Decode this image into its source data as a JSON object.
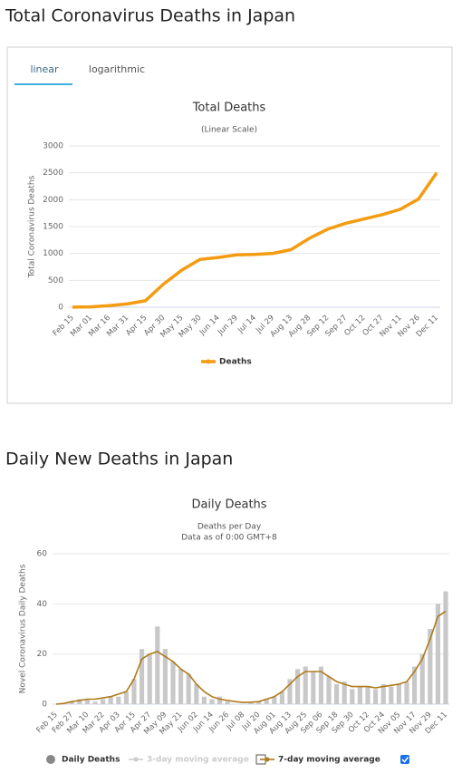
{
  "page": {
    "heading": "Total Coronavirus Deaths in Japan",
    "tabs": [
      "linear",
      "logarithmic"
    ],
    "heading2": "Daily New Deaths in Japan"
  },
  "chart_data": [
    {
      "type": "line",
      "title": "Total Deaths",
      "subtitle": [
        "(Linear Scale)"
      ],
      "y_label": "Total Coronavirus Deaths",
      "categories": [
        "Feb 15",
        "Mar 01",
        "Mar 16",
        "Mar 31",
        "Apr 15",
        "Apr 30",
        "May 15",
        "May 30",
        "Jun 14",
        "Jun 29",
        "Jul 14",
        "Jul 29",
        "Aug 13",
        "Aug 28",
        "Sep 12",
        "Sep 27",
        "Oct 12",
        "Oct 27",
        "Nov 11",
        "Nov 26",
        "Dec 11"
      ],
      "series": [
        {
          "name": "Deaths",
          "color": "#f39c12",
          "type": "line",
          "values": [
            1,
            6,
            28,
            60,
            120,
            430,
            690,
            890,
            925,
            972,
            983,
            1001,
            1070,
            1280,
            1450,
            1560,
            1640,
            1720,
            1820,
            2010,
            2500
          ]
        }
      ],
      "ylim": [
        0,
        3000
      ],
      "yticks": [
        0,
        500,
        1000,
        1500,
        2000,
        2500,
        3000
      ],
      "grid": true,
      "legend": "bottom"
    },
    {
      "type": "bar",
      "title": "Daily Deaths",
      "subtitle": [
        "Deaths per Day",
        "Data as of 0:00 GMT+8"
      ],
      "y_label": "Novel Coronavirus Daily Deaths",
      "categories": [
        "Feb 15",
        null,
        "Feb 27",
        null,
        "Mar 10",
        null,
        "Mar 22",
        null,
        "Apr 03",
        null,
        "Apr 15",
        null,
        "Apr 27",
        null,
        "May 09",
        null,
        "May 21",
        null,
        "Jun 02",
        null,
        "Jun 14",
        null,
        "Jun 26",
        null,
        "Jul 08",
        null,
        "Jul 20",
        null,
        "Aug 01",
        null,
        "Aug 13",
        null,
        "Aug 25",
        null,
        "Sep 06",
        null,
        "Sep 18",
        null,
        "Sep 30",
        null,
        "Oct 12",
        null,
        "Oct 24",
        null,
        "Nov 05",
        null,
        "Nov 17",
        null,
        "Nov 29",
        null,
        "Dec 11"
      ],
      "series": [
        {
          "name": "Daily Deaths",
          "color": "#c8c8c8",
          "type": "bar",
          "values": [
            0,
            0,
            1,
            2,
            2,
            1,
            2,
            3,
            3,
            5,
            10,
            22,
            20,
            31,
            22,
            17,
            14,
            12,
            8,
            3,
            2,
            3,
            1,
            0,
            0,
            1,
            1,
            2,
            3,
            5,
            10,
            14,
            15,
            13,
            15,
            11,
            8,
            9,
            6,
            7,
            7,
            6,
            8,
            7,
            8,
            9,
            15,
            20,
            30,
            40,
            45
          ]
        },
        {
          "name": "3-day moving average",
          "color": "#cccccc",
          "type": "line",
          "visible": false,
          "values": [
            null,
            null,
            null,
            null,
            null,
            null,
            null,
            null,
            null,
            null,
            null,
            null,
            null,
            null,
            null,
            null,
            null,
            null,
            null,
            null,
            null,
            null,
            null,
            null,
            null,
            null,
            null,
            null,
            null,
            null,
            null,
            null,
            null,
            null,
            null,
            null,
            null,
            null,
            null,
            null,
            null,
            null,
            null,
            null,
            null,
            null,
            null,
            null,
            null,
            null,
            null
          ]
        },
        {
          "name": "7-day moving average",
          "color": "#b07a1a",
          "type": "line",
          "values": [
            0,
            0.3,
            1,
            1.5,
            2,
            2,
            2.5,
            3,
            4,
            5,
            10,
            18,
            20,
            21,
            19,
            17,
            14,
            12,
            8,
            5,
            3,
            2,
            1.5,
            1,
            0.7,
            0.8,
            1,
            2,
            3,
            5,
            8,
            11,
            13,
            13,
            13,
            11,
            9,
            8,
            7,
            7,
            7,
            6.5,
            7,
            7.5,
            8,
            9,
            13,
            18,
            26,
            35,
            37
          ]
        }
      ],
      "ylim": [
        0,
        60
      ],
      "yticks": [
        0,
        20,
        40,
        60
      ],
      "grid": true,
      "legend": "bottom"
    }
  ]
}
